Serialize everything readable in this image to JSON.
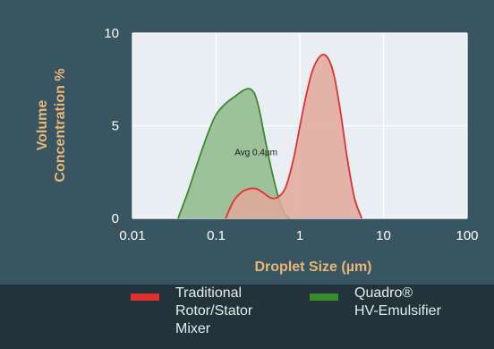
{
  "chart_data": {
    "type": "area",
    "xscale": "log",
    "xlim": [
      0.01,
      100
    ],
    "ylim": [
      0,
      10
    ],
    "xticks": [
      "0.01",
      "0.1",
      "1",
      "10",
      "100"
    ],
    "yticks": [
      "0",
      "5",
      "10"
    ],
    "xlabel": "Droplet Size (µm)",
    "ylabel_line1": "Volume",
    "ylabel_line2": "Concentration %",
    "grid": true,
    "annotation": "Avg 0.4µm",
    "annotation_at": [
      0.3,
      3.4
    ],
    "series": [
      {
        "name": "Quadro® HV-Emulsifier",
        "legend_lines": [
          "Quadro®",
          "HV-Emulsifier"
        ],
        "color": "#3a8a2e",
        "fill": "#8fb98a",
        "x": [
          0.035,
          0.045,
          0.06,
          0.08,
          0.1,
          0.13,
          0.17,
          0.21,
          0.25,
          0.29,
          0.33,
          0.38,
          0.45,
          0.55,
          0.65,
          0.75
        ],
        "y": [
          0,
          1.3,
          3.0,
          4.6,
          5.6,
          6.2,
          6.6,
          6.9,
          7.0,
          6.7,
          5.8,
          4.4,
          2.8,
          1.2,
          0.3,
          0
        ]
      },
      {
        "name": "Traditional Rotor/Stator Mixer",
        "legend_lines": [
          "Traditional",
          "Rotor/Stator",
          "Mixer"
        ],
        "color": "#e03030",
        "fill": "#e2a89a",
        "x": [
          0.13,
          0.16,
          0.2,
          0.25,
          0.3,
          0.36,
          0.45,
          0.55,
          0.68,
          0.85,
          1.1,
          1.4,
          1.8,
          2.2,
          2.6,
          3.1,
          3.7,
          4.5,
          5.5
        ],
        "y": [
          0,
          0.9,
          1.4,
          1.6,
          1.6,
          1.4,
          1.1,
          1.15,
          1.7,
          3.3,
          5.9,
          7.9,
          8.8,
          8.6,
          7.6,
          5.6,
          3.2,
          1.1,
          0
        ]
      }
    ]
  }
}
